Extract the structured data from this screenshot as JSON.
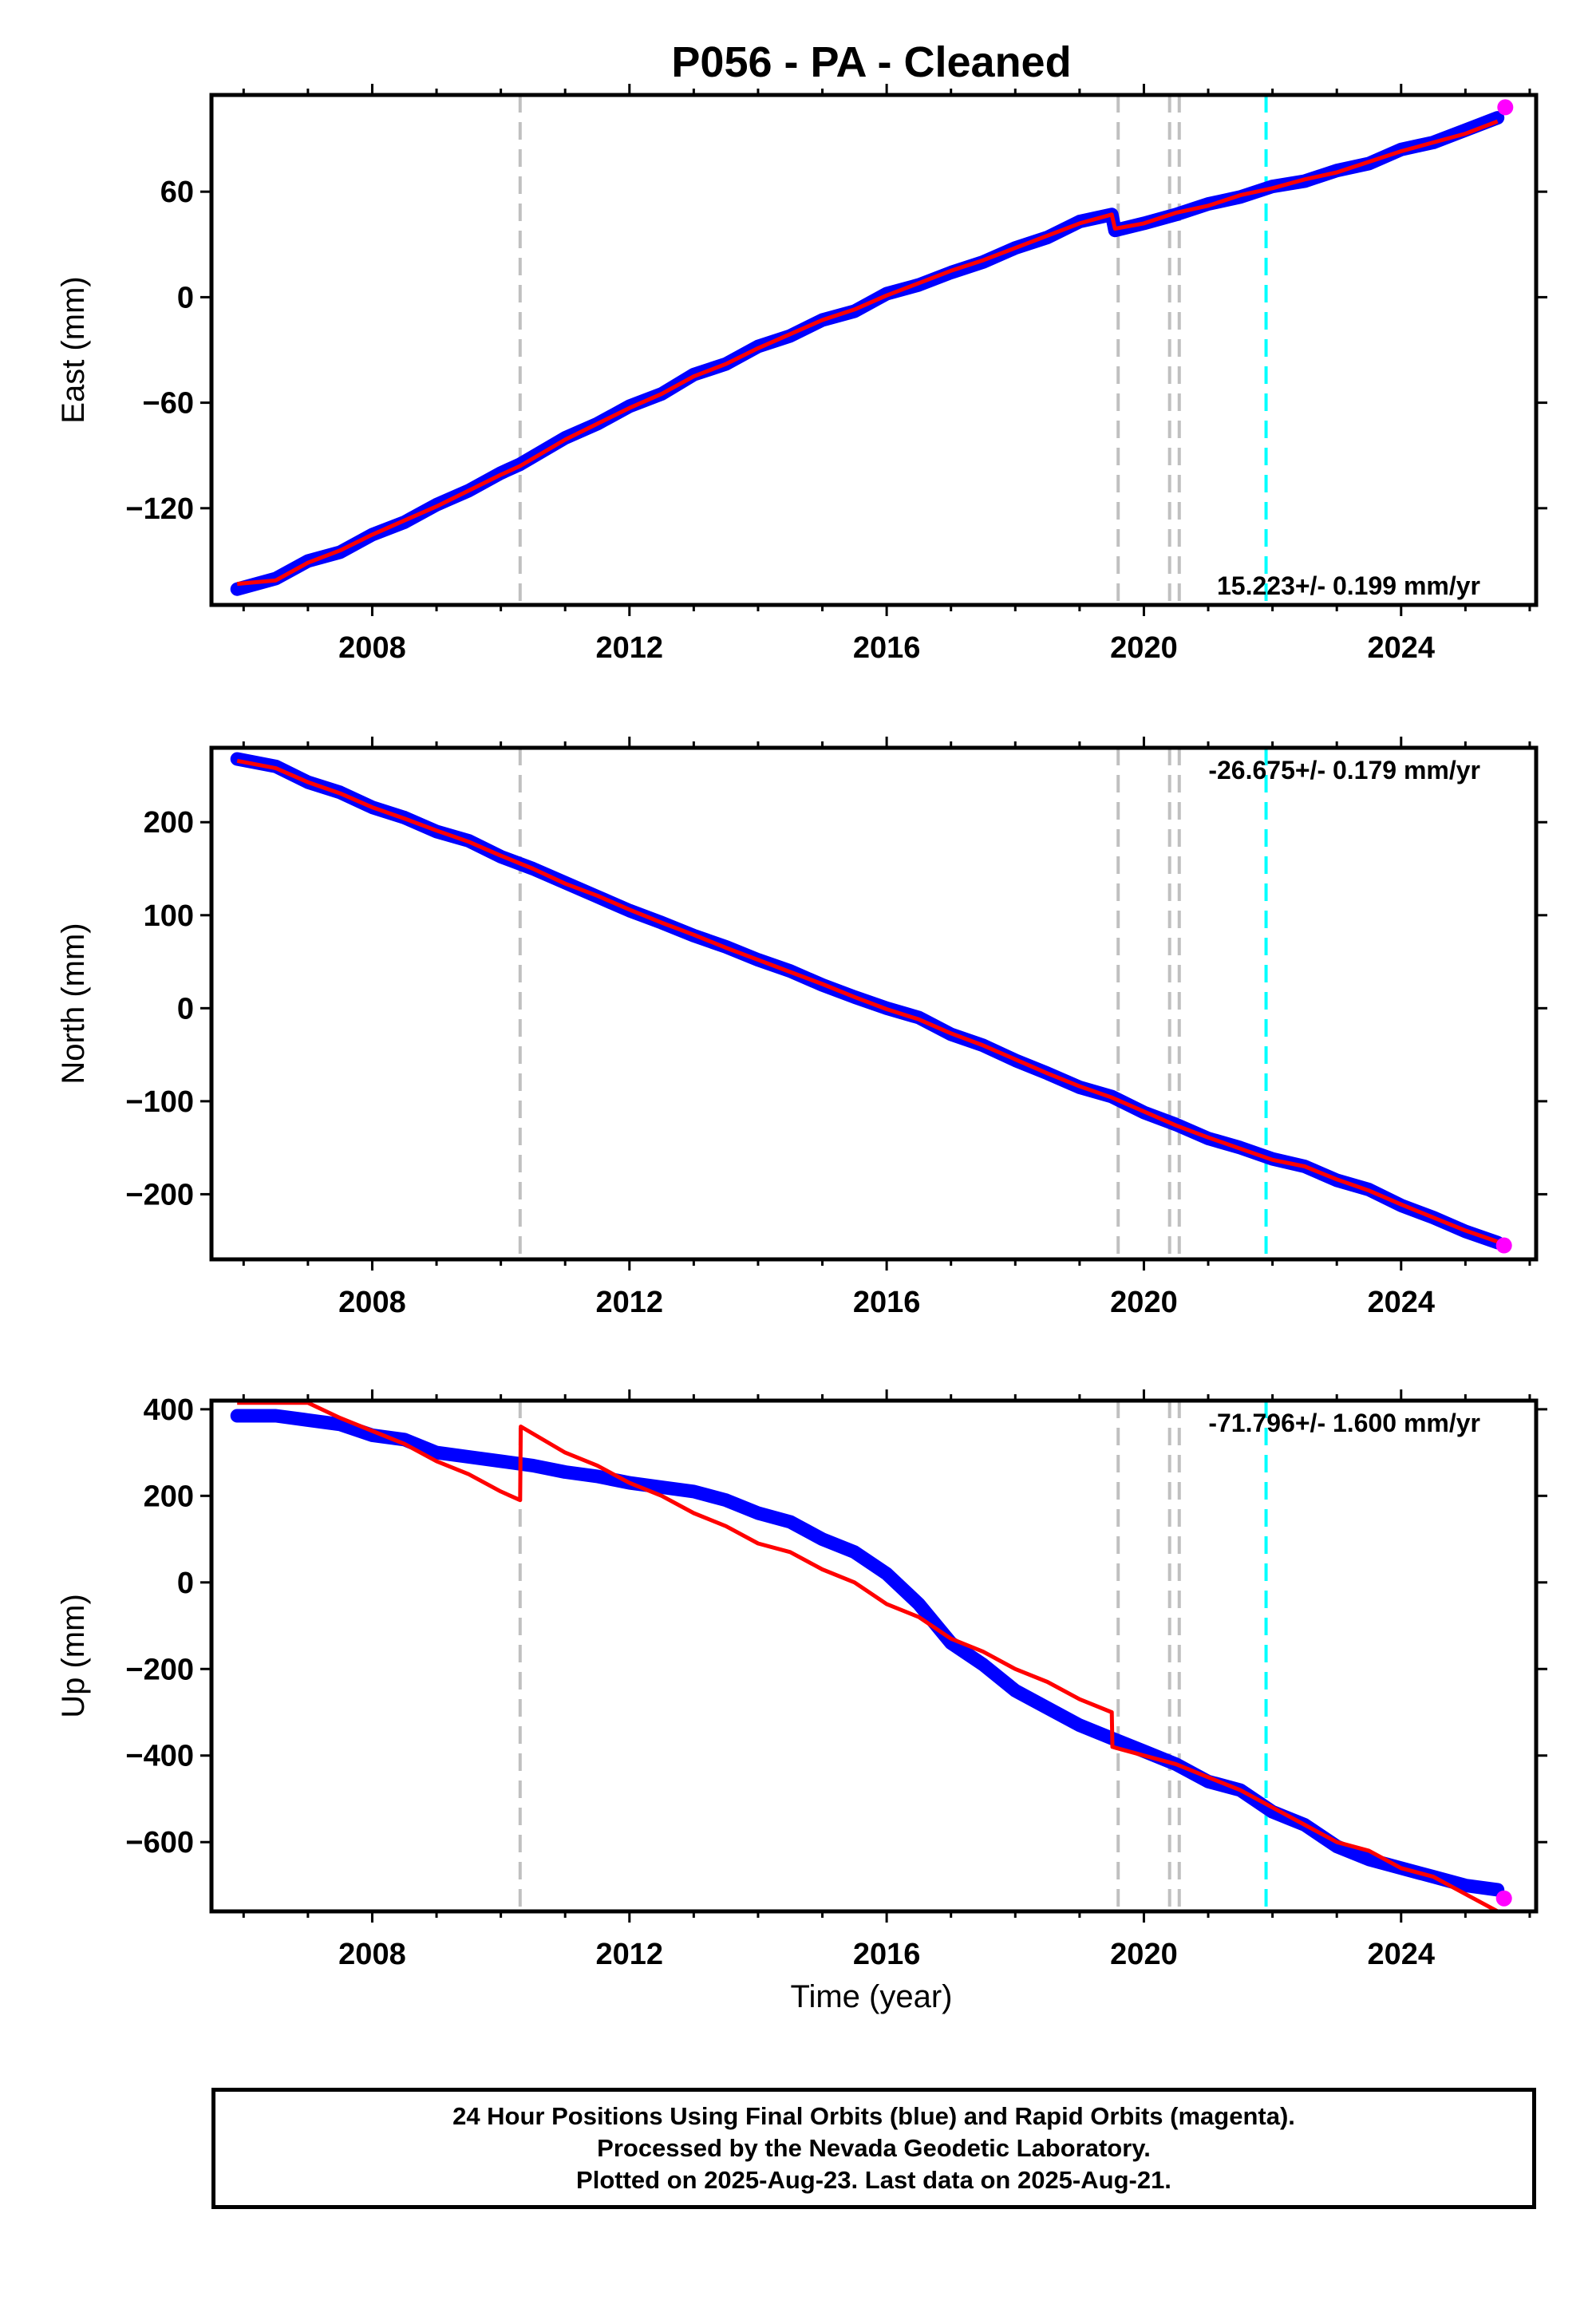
{
  "title": "P056  - PA - Cleaned",
  "x_axis_label": "Time (year)",
  "x_ticks": [
    "2008",
    "2012",
    "2016",
    "2020",
    "2024"
  ],
  "footer": {
    "line1": "24 Hour Positions Using Final Orbits (blue) and Rapid Orbits (magenta).",
    "line2": "Processed by the Nevada Geodetic Laboratory.",
    "line3": "Plotted on 2025-Aug-23. Last data on 2025-Aug-21."
  },
  "colors": {
    "final_orbits": "#0000ff",
    "rapid_orbits": "#ff00ff",
    "model_fit": "#ff0000",
    "equipment_change_lines": "#c0c0c0",
    "earthquake_line": "#00ffff"
  },
  "chart_data": [
    {
      "type": "scatter",
      "panel": "east",
      "ylabel": "East (mm)",
      "xlim": [
        2005.5,
        2026.1
      ],
      "ylim": [
        -175,
        115
      ],
      "yticks": [
        -120,
        -60,
        0,
        60
      ],
      "rate_text": "15.223+/- 0.199 mm/yr",
      "series": [
        {
          "role": "final_orbits",
          "x": [
            2005.9,
            2006.5,
            2007.0,
            2007.5,
            2008.0,
            2008.5,
            2009.0,
            2009.5,
            2010.0,
            2010.3,
            2011.0,
            2011.5,
            2012.0,
            2012.5,
            2013.0,
            2013.5,
            2014.0,
            2014.5,
            2015.0,
            2015.5,
            2016.0,
            2016.5,
            2017.0,
            2017.5,
            2018.0,
            2018.5,
            2019.0,
            2019.5,
            2019.55,
            2020.0,
            2020.5,
            2021.0,
            2021.5,
            2022.0,
            2022.5,
            2023.0,
            2023.5,
            2024.0,
            2024.5,
            2025.0,
            2025.5
          ],
          "y": [
            -166,
            -160,
            -150,
            -145,
            -135,
            -128,
            -118,
            -110,
            -100,
            -95,
            -80,
            -72,
            -62,
            -55,
            -44,
            -38,
            -28,
            -22,
            -13,
            -8,
            2,
            7,
            14,
            20,
            28,
            34,
            43,
            47,
            38,
            42,
            47,
            53,
            57,
            63,
            66,
            72,
            76,
            84,
            88,
            95,
            102
          ]
        },
        {
          "role": "rapid_orbits",
          "x": [
            2025.62
          ],
          "y": [
            108
          ]
        },
        {
          "role": "model_fit",
          "x": [
            2005.9,
            2006.5,
            2007.0,
            2007.5,
            2008.0,
            2008.5,
            2009.0,
            2009.5,
            2010.0,
            2010.3,
            2011.0,
            2011.5,
            2012.0,
            2012.5,
            2013.0,
            2013.5,
            2014.0,
            2014.5,
            2015.0,
            2015.5,
            2016.0,
            2016.5,
            2017.0,
            2017.5,
            2018.0,
            2018.5,
            2019.0,
            2019.5,
            2019.55,
            2020.0,
            2020.5,
            2021.0,
            2021.5,
            2022.0,
            2022.5,
            2023.0,
            2023.5,
            2024.0,
            2024.5,
            2025.0,
            2025.5
          ],
          "y": [
            -163,
            -161,
            -151,
            -144,
            -135,
            -127,
            -119,
            -110,
            -101,
            -96,
            -81,
            -72,
            -63,
            -55,
            -45,
            -38,
            -29,
            -21,
            -13,
            -7,
            1,
            8,
            15,
            21,
            28,
            35,
            42,
            47,
            39,
            42,
            48,
            52,
            58,
            62,
            67,
            71,
            77,
            83,
            88,
            93,
            100
          ]
        }
      ]
    },
    {
      "type": "scatter",
      "panel": "north",
      "ylabel": "North (mm)",
      "xlim": [
        2005.5,
        2026.1
      ],
      "ylim": [
        -270,
        280
      ],
      "yticks": [
        -200,
        -100,
        0,
        100,
        200
      ],
      "rate_text": "-26.675+/- 0.179 mm/yr",
      "series": [
        {
          "role": "final_orbits",
          "x": [
            2005.9,
            2006.5,
            2007.0,
            2007.5,
            2008.0,
            2008.5,
            2009.0,
            2009.5,
            2010.0,
            2010.5,
            2011.0,
            2011.5,
            2012.0,
            2012.5,
            2013.0,
            2013.5,
            2014.0,
            2014.5,
            2015.0,
            2015.5,
            2016.0,
            2016.5,
            2017.0,
            2017.5,
            2018.0,
            2018.5,
            2019.0,
            2019.5,
            2020.0,
            2020.5,
            2021.0,
            2021.5,
            2022.0,
            2022.5,
            2023.0,
            2023.5,
            2024.0,
            2024.5,
            2025.0,
            2025.5
          ],
          "y": [
            268,
            260,
            243,
            232,
            216,
            205,
            190,
            180,
            163,
            150,
            135,
            120,
            105,
            92,
            78,
            66,
            52,
            40,
            25,
            12,
            0,
            -10,
            -28,
            -40,
            -56,
            -70,
            -85,
            -95,
            -112,
            -125,
            -140,
            -150,
            -162,
            -170,
            -185,
            -195,
            -212,
            -225,
            -240,
            -252
          ]
        },
        {
          "role": "rapid_orbits",
          "x": [
            2025.6
          ],
          "y": [
            -255
          ]
        },
        {
          "role": "model_fit",
          "x": [
            2005.9,
            2006.5,
            2007.0,
            2007.5,
            2008.0,
            2008.5,
            2009.0,
            2009.5,
            2010.0,
            2010.5,
            2011.0,
            2011.5,
            2012.0,
            2012.5,
            2013.0,
            2013.5,
            2014.0,
            2014.5,
            2015.0,
            2015.5,
            2016.0,
            2016.5,
            2017.0,
            2017.5,
            2018.0,
            2018.5,
            2019.0,
            2019.5,
            2020.0,
            2020.5,
            2021.0,
            2021.5,
            2022.0,
            2022.5,
            2023.0,
            2023.5,
            2024.0,
            2024.5,
            2025.0,
            2025.5
          ],
          "y": [
            266,
            258,
            243,
            231,
            216,
            204,
            191,
            179,
            164,
            150,
            134,
            121,
            106,
            92,
            79,
            65,
            52,
            39,
            26,
            12,
            -1,
            -12,
            -27,
            -40,
            -55,
            -70,
            -84,
            -96,
            -111,
            -126,
            -139,
            -151,
            -163,
            -170,
            -184,
            -196,
            -211,
            -225,
            -239,
            -251
          ]
        }
      ]
    },
    {
      "type": "scatter",
      "panel": "up",
      "ylabel": "Up (mm)",
      "xlim": [
        2005.5,
        2026.1
      ],
      "ylim": [
        -760,
        420
      ],
      "yticks": [
        -600,
        -400,
        -200,
        0,
        200,
        400
      ],
      "rate_text": "-71.796+/- 1.600 mm/yr",
      "series": [
        {
          "role": "final_orbits",
          "x": [
            2005.9,
            2006.5,
            2007.0,
            2007.5,
            2008.0,
            2008.5,
            2009.0,
            2009.5,
            2010.0,
            2010.5,
            2011.0,
            2011.5,
            2012.0,
            2012.5,
            2013.0,
            2013.5,
            2014.0,
            2014.5,
            2015.0,
            2015.5,
            2016.0,
            2016.5,
            2017.0,
            2017.5,
            2018.0,
            2018.5,
            2019.0,
            2019.5,
            2020.0,
            2020.5,
            2021.0,
            2021.5,
            2022.0,
            2022.5,
            2023.0,
            2023.5,
            2024.0,
            2024.5,
            2025.0,
            2025.5
          ],
          "y": [
            385,
            385,
            375,
            365,
            340,
            330,
            300,
            290,
            280,
            270,
            255,
            245,
            230,
            220,
            210,
            190,
            160,
            140,
            100,
            70,
            20,
            -50,
            -140,
            -190,
            -250,
            -290,
            -330,
            -360,
            -390,
            -420,
            -460,
            -480,
            -530,
            -560,
            -610,
            -640,
            -660,
            -680,
            -700,
            -710
          ]
        },
        {
          "role": "rapid_orbits",
          "x": [
            2025.6
          ],
          "y": [
            -730
          ]
        },
        {
          "role": "model_fit",
          "x": [
            2005.9,
            2007.0,
            2007.5,
            2008.0,
            2008.5,
            2009.0,
            2009.5,
            2010.0,
            2010.3,
            2010.31,
            2011.0,
            2011.5,
            2012.0,
            2012.5,
            2013.0,
            2013.5,
            2014.0,
            2014.5,
            2015.0,
            2015.5,
            2016.0,
            2016.5,
            2017.0,
            2017.5,
            2018.0,
            2018.5,
            2019.0,
            2019.5,
            2019.51,
            2020.0,
            2020.5,
            2021.0,
            2021.5,
            2022.0,
            2022.5,
            2023.0,
            2023.5,
            2024.0,
            2024.5,
            2025.0,
            2025.5
          ],
          "y": [
            415,
            415,
            380,
            350,
            320,
            280,
            250,
            210,
            190,
            360,
            300,
            270,
            230,
            200,
            160,
            130,
            90,
            70,
            30,
            0,
            -50,
            -80,
            -130,
            -160,
            -200,
            -230,
            -270,
            -300,
            -380,
            -400,
            -420,
            -450,
            -480,
            -520,
            -560,
            -600,
            -620,
            -660,
            -680,
            -720,
            -760
          ]
        }
      ]
    }
  ],
  "event_lines": {
    "equipment_changes": [
      2010.3,
      2019.6,
      2020.4,
      2020.55
    ],
    "earthquake": [
      2021.9
    ]
  }
}
